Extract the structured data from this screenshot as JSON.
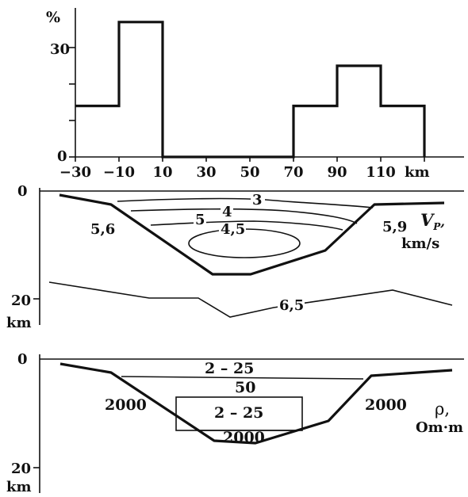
{
  "chart_data": [
    {
      "type": "bar",
      "ylabel": "%",
      "xlabel": "km",
      "bin_edges": [
        -30,
        -10,
        10,
        30,
        50,
        70,
        90,
        110,
        130
      ],
      "values": [
        14,
        37,
        0,
        0,
        0,
        14,
        25,
        14
      ],
      "ylim": [
        0,
        40
      ],
      "xticks": [
        "−30",
        "−10",
        "10",
        "30",
        "50",
        "70",
        "90",
        "110"
      ],
      "yticks": [
        "0",
        "30"
      ]
    },
    {
      "type": "line",
      "title": "V_P, km/s",
      "ylabel": "km",
      "yticks": [
        "0",
        "20"
      ],
      "region_labels": [
        "5,6",
        "5,9"
      ],
      "contour_labels": [
        "3",
        "4",
        "5",
        "4,5",
        "6,5"
      ]
    },
    {
      "type": "line",
      "title": "ρ, Om·m",
      "ylabel": "km",
      "yticks": [
        "0",
        "20"
      ],
      "region_labels": [
        "2000",
        "2000",
        "2000"
      ],
      "layer_labels": [
        "2 – 25",
        "50",
        "2 – 25"
      ]
    }
  ],
  "labels": {
    "hist_ylabel": "%",
    "hist_xunit": "km",
    "hist_xticks": [
      "−30",
      "−10",
      "10",
      "30",
      "50",
      "70",
      "90",
      "110"
    ],
    "hist_yticks": [
      "0",
      "30"
    ],
    "vp": {
      "depth_top": "0",
      "depth_bottom": "20",
      "depth_unit": "km",
      "left_region": "5,6",
      "right_region": "5,9",
      "c3": "3",
      "c4": "4",
      "c5": "5",
      "c45": "4,5",
      "c65": "6,5",
      "param": "V",
      "param_sub": "P",
      "param_comma": ",",
      "unit": "km/s"
    },
    "rho": {
      "depth_top": "0",
      "depth_bottom": "20",
      "depth_unit": "km",
      "left_region": "2000",
      "right_region": "2000",
      "bottom_region": "2000",
      "top_layer": "2 – 25",
      "mid_layer": "50",
      "lens_layer": "2 – 25",
      "param": "ρ,",
      "unit": "Om·m"
    }
  }
}
